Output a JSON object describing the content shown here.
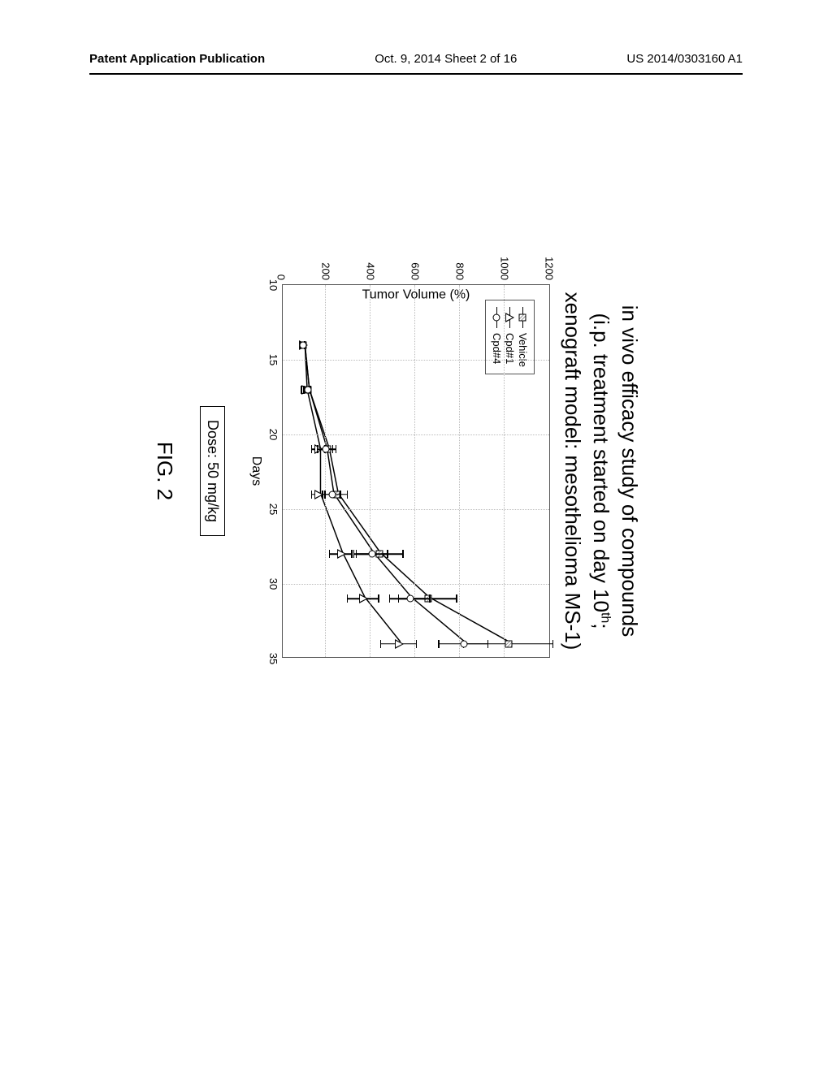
{
  "header": {
    "left": "Patent Application Publication",
    "center": "Oct. 9, 2014  Sheet 2 of 16",
    "right": "US 2014/0303160 A1"
  },
  "chart": {
    "type": "line",
    "title_line1": "in vivo efficacy study of compounds",
    "title_line2_prefix": "(i.p. treatment started on day 10",
    "title_line2_sup": "th",
    "title_line2_suffix": ";",
    "title_line3": "xenograft model: mesothelioma MS-1)",
    "xlabel": "Days",
    "ylabel": "Tumor Volume (%)",
    "xlim": [
      10,
      35
    ],
    "ylim": [
      0,
      1200
    ],
    "xticks": [
      10,
      15,
      20,
      25,
      30,
      35
    ],
    "yticks": [
      0,
      200,
      400,
      600,
      800,
      1000,
      1200
    ],
    "grid_color": "#bbbbbb",
    "background_color": "#ffffff",
    "line_color": "#000000",
    "series": [
      {
        "name": "Vehicle",
        "marker": "square",
        "x": [
          14,
          17,
          21,
          24,
          28,
          31,
          34
        ],
        "y": [
          100,
          120,
          210,
          250,
          440,
          660,
          1020
        ],
        "err": [
          10,
          15,
          40,
          50,
          110,
          130,
          200
        ]
      },
      {
        "name": "Cpd#1",
        "marker": "triangle",
        "x": [
          14,
          17,
          21,
          24,
          28,
          31,
          34
        ],
        "y": [
          100,
          110,
          170,
          170,
          270,
          370,
          530
        ],
        "err": [
          10,
          15,
          30,
          30,
          50,
          70,
          80
        ]
      },
      {
        "name": "Cpd#4",
        "marker": "circle",
        "x": [
          14,
          17,
          21,
          24,
          28,
          31,
          34
        ],
        "y": [
          100,
          120,
          200,
          230,
          410,
          580,
          820
        ],
        "err": [
          10,
          15,
          35,
          40,
          70,
          90,
          110
        ]
      }
    ],
    "legend_border_color": "#555555",
    "marker_size": 9,
    "line_width": 1.5,
    "errbar_color": "#000000"
  },
  "dose_label": "Dose: 50 mg/kg",
  "figure_label": "FIG. 2"
}
